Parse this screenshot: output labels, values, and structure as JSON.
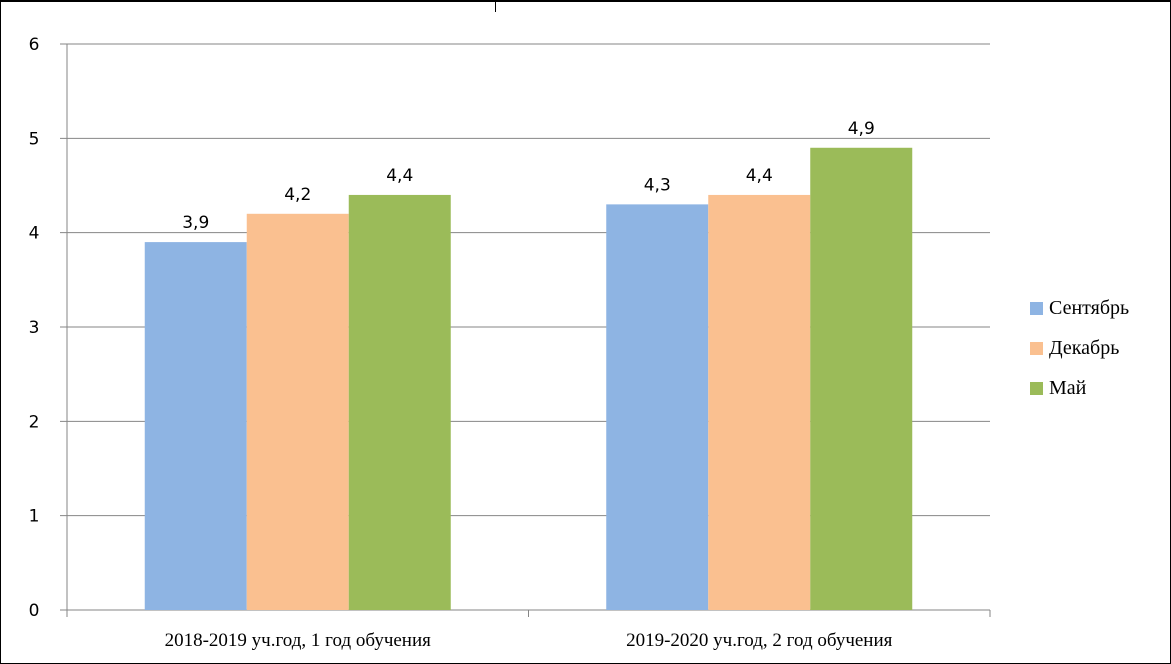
{
  "chart_data": {
    "type": "bar",
    "categories": [
      "2018-2019 уч.год, 1 год обучения",
      "2019-2020 уч.год, 2 год обучения"
    ],
    "series": [
      {
        "name": "Сентябрь",
        "values": [
          3.9,
          4.3
        ],
        "labels": [
          "3,9",
          "4,3"
        ],
        "color": "#8EB4E3"
      },
      {
        "name": "Декабрь",
        "values": [
          4.2,
          4.4
        ],
        "labels": [
          "4,2",
          "4,4"
        ],
        "color": "#FAC090"
      },
      {
        "name": "Май",
        "values": [
          4.4,
          4.9
        ],
        "labels": [
          "4,4",
          "4,9"
        ],
        "color": "#9BBB59"
      }
    ],
    "ylim": [
      0,
      6
    ],
    "yticks": [
      "0",
      "1",
      "2",
      "3",
      "4",
      "5",
      "6"
    ],
    "grid": true,
    "legend_position": "right"
  }
}
